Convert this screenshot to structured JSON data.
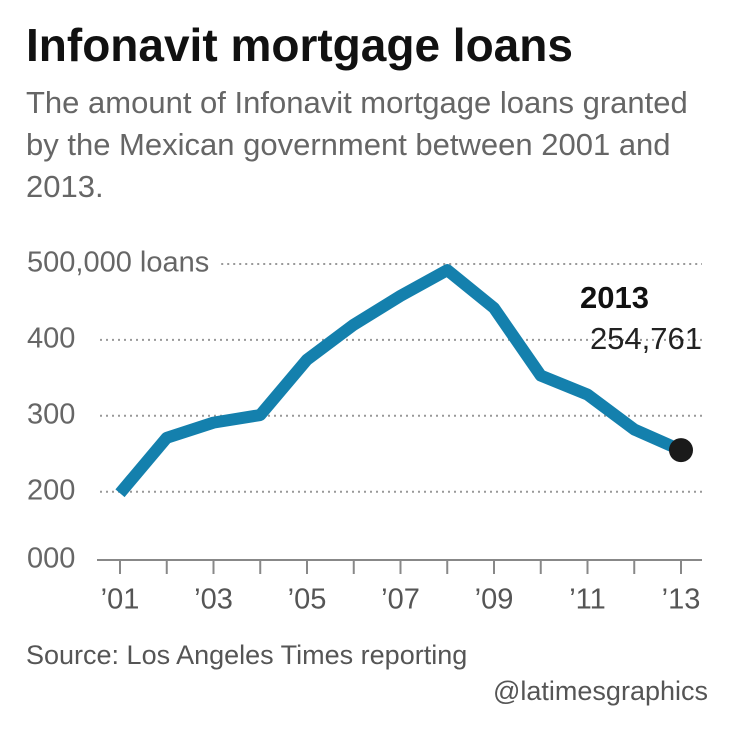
{
  "chart_data": {
    "type": "line",
    "title": "Infonavit mortgage loans",
    "subtitle": "The amount of Infonavit mortgage loans granted by the Mexican government between 2001 and 2013.",
    "categories": [
      "’01",
      null,
      "’03",
      null,
      "’05",
      null,
      "’07",
      null,
      "’09",
      null,
      "’11",
      null,
      "’13"
    ],
    "series": [
      {
        "name": "Infonavit mortgage loans",
        "color": "#1480ad",
        "values": [
          198000,
          271000,
          291000,
          301000,
          374000,
          420000,
          458000,
          492000,
          442000,
          353000,
          328000,
          282000,
          254761
        ],
        "value_labels": [
          null,
          null,
          null,
          null,
          null,
          null,
          null,
          null,
          null,
          null,
          null,
          null,
          "254,761"
        ]
      }
    ],
    "annotation": "2013",
    "ylim": [
      110000,
      500000
    ],
    "yticks": [
      {
        "value": 200000,
        "label": "200"
      },
      {
        "value": 300000,
        "label": "300"
      },
      {
        "value": 400000,
        "label": "400"
      },
      {
        "value": 500000,
        "label": "500,000 loans"
      }
    ],
    "y_axis_floor_label": "000",
    "grid": true,
    "source": "Source: Los Angeles Times reporting",
    "credit": "@latimesgraphics"
  }
}
